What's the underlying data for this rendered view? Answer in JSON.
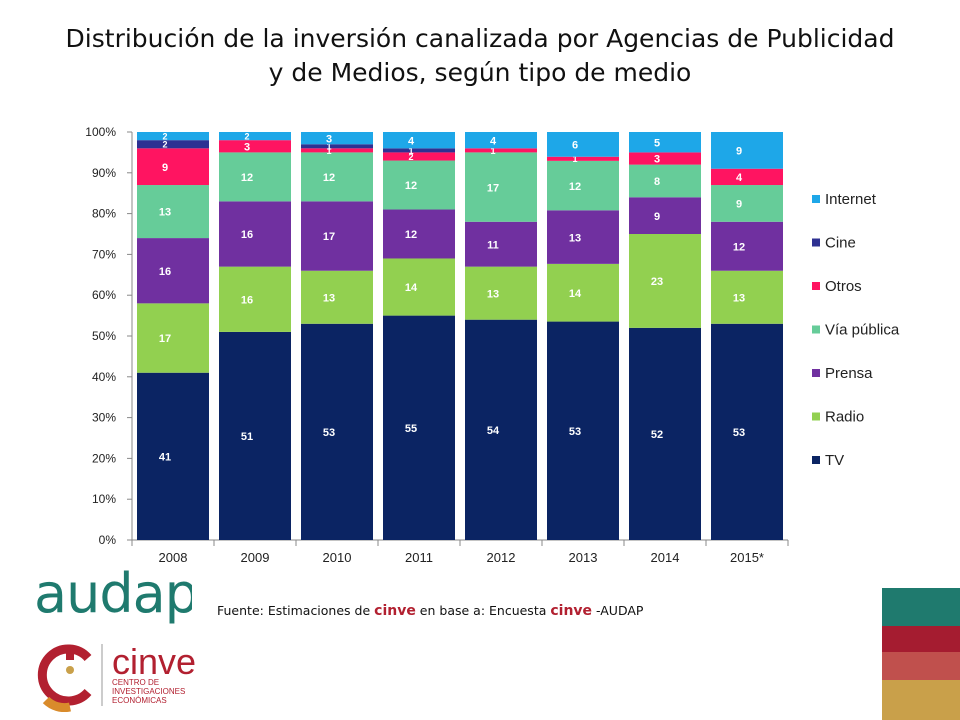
{
  "title_line1": "Distribución de la inversión canalizada por Agencias de Publicidad",
  "title_line2": "y  de Medios,  según tipo de medio",
  "source": {
    "prefix": "Fuente: Estimaciones de ",
    "brand1": "cinve",
    "middle": " en base a: Encuesta ",
    "brand2": "cinve",
    "suffix": " -AUDAP"
  },
  "logos": {
    "audap": "audap",
    "cinve": "cinve",
    "cinve_sub": "CENTRO DE INVESTIGACIONES ECONÓMICAS"
  },
  "colors": {
    "TV": "#0b2463",
    "Radio": "#92d050",
    "Prensa": "#7030a0",
    "Vía pública": "#66cc99",
    "Otros": "#ff1461",
    "Cine": "#2e3192",
    "Internet": "#1ea7e8",
    "deco": [
      "#1f7a6e",
      "#a51c30",
      "#c0504d",
      "#c9a04a"
    ]
  },
  "chart_data": {
    "type": "bar",
    "stacked": true,
    "percent": true,
    "categories": [
      "2008",
      "2009",
      "2010",
      "2011",
      "2012",
      "2013",
      "2014",
      "2015*"
    ],
    "series": [
      {
        "name": "TV",
        "values": [
          41,
          51,
          53,
          55,
          54,
          53,
          52,
          53
        ]
      },
      {
        "name": "Radio",
        "values": [
          17,
          16,
          13,
          14,
          13,
          14,
          23,
          13
        ]
      },
      {
        "name": "Prensa",
        "values": [
          16,
          16,
          17,
          12,
          11,
          13,
          9,
          12
        ]
      },
      {
        "name": "Vía pública",
        "values": [
          13,
          12,
          12,
          12,
          17,
          12,
          8,
          9
        ]
      },
      {
        "name": "Otros",
        "values": [
          9,
          3,
          1,
          2,
          1,
          1,
          3,
          4
        ]
      },
      {
        "name": "Cine",
        "values": [
          2,
          0,
          1,
          1,
          0,
          0,
          0,
          0
        ]
      },
      {
        "name": "Internet",
        "values": [
          2,
          2,
          3,
          4,
          4,
          6,
          5,
          9
        ]
      }
    ],
    "yticks": [
      "0%",
      "10%",
      "20%",
      "30%",
      "40%",
      "50%",
      "60%",
      "70%",
      "80%",
      "90%",
      "100%"
    ],
    "ylim": [
      0,
      100
    ],
    "legend": "right",
    "grid": false
  }
}
